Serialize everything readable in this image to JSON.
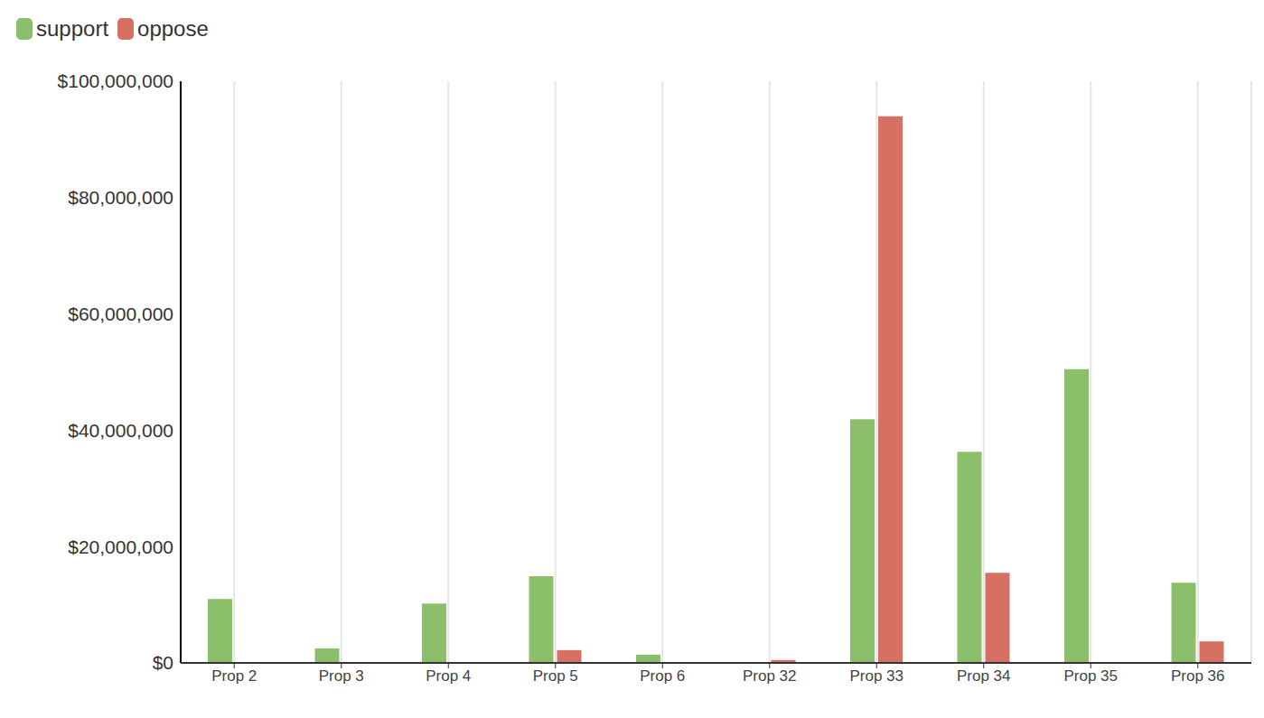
{
  "chart_data": {
    "type": "bar",
    "categories": [
      "Prop 2",
      "Prop 3",
      "Prop 4",
      "Prop 5",
      "Prop 6",
      "Prop 32",
      "Prop 33",
      "Prop 34",
      "Prop 35",
      "Prop 36"
    ],
    "series": [
      {
        "name": "support",
        "color": "#8cbf6a",
        "values": [
          11000000,
          2500000,
          10200000,
          14900000,
          1400000,
          0,
          41900000,
          36300000,
          50500000,
          13800000
        ]
      },
      {
        "name": "oppose",
        "color": "#d67062",
        "values": [
          0,
          0,
          0,
          2200000,
          0,
          500000,
          94000000,
          15500000,
          0,
          3700000
        ]
      }
    ],
    "ylim": [
      0,
      100000000
    ],
    "yticks": [
      {
        "value": 0,
        "label": "$0"
      },
      {
        "value": 20000000,
        "label": "$20,000,000"
      },
      {
        "value": 40000000,
        "label": "$40,000,000"
      },
      {
        "value": 60000000,
        "label": "$60,000,000"
      },
      {
        "value": 80000000,
        "label": "$80,000,000"
      },
      {
        "value": 100000000,
        "label": "$100,000,000"
      }
    ],
    "grid": true,
    "legend": "top-left"
  }
}
